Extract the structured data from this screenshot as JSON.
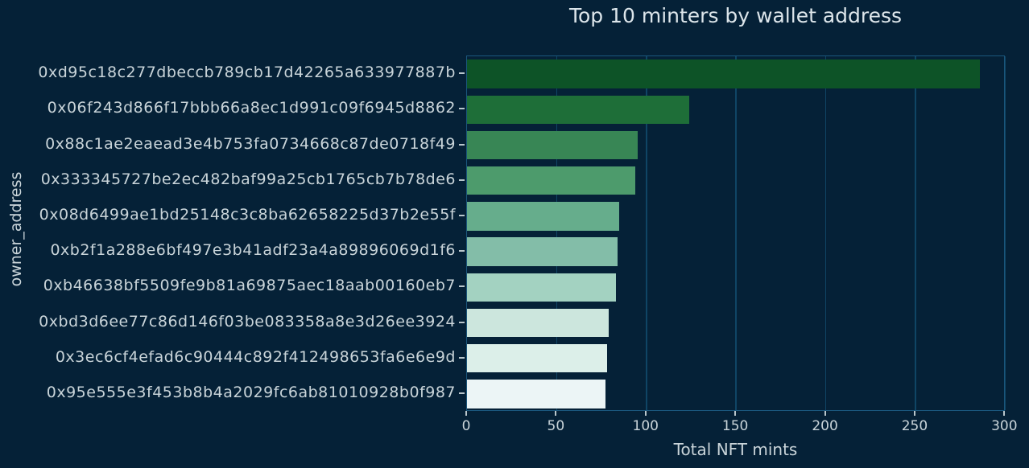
{
  "figure": {
    "background": "#052137",
    "plot_background": "#052137",
    "spine_color": "#1a567c",
    "grid_color": "#0f4565",
    "tick_color": "#b9c6cc",
    "text_color": "#c9d4d9",
    "title_color": "#dce5ea"
  },
  "chart_data": {
    "type": "bar",
    "orientation": "horizontal",
    "title": "Top 10 minters by wallet address",
    "xlabel": "Total NFT mints",
    "ylabel": "owner_address",
    "categories": [
      "0xd95c18c277dbeccb789cb17d42265a633977887b",
      "0x06f243d866f17bbb66a8ec1d991c09f6945d8862",
      "0x88c1ae2eaead3e4b753fa0734668c87de0718f49",
      "0x333345727be2ec482baf99a25cb1765cb7b78de6",
      "0x08d6499ae1bd25148c3c8ba62658225d37b2e55f",
      "0xb2f1a288e6bf497e3b41adf23a4a89896069d1f6",
      "0xb46638bf5509fe9b81a69875aec18aab00160eb7",
      "0xbd3d6ee77c86d146f03be083358a8e3d26ee3924",
      "0x3ec6cf4efad6c90444c892f412498653fa6e6e9d",
      "0x95e555e3f453b8b4a2029fc6ab81010928b0f987"
    ],
    "values": [
      286,
      124,
      95,
      94,
      85,
      84,
      83,
      79,
      78,
      77
    ],
    "bar_colors": [
      "#0d5327",
      "#1e6e38",
      "#388655",
      "#4d9b6c",
      "#66ad8c",
      "#83bda8",
      "#a3d2c1",
      "#cce6dd",
      "#dcefe9",
      "#ecf5f6"
    ],
    "xticks": [
      0,
      50,
      100,
      150,
      200,
      250,
      300
    ],
    "xlim": [
      0,
      300.3
    ],
    "grid": "vertical",
    "legend": "none",
    "bar_height_fraction": 0.8
  }
}
